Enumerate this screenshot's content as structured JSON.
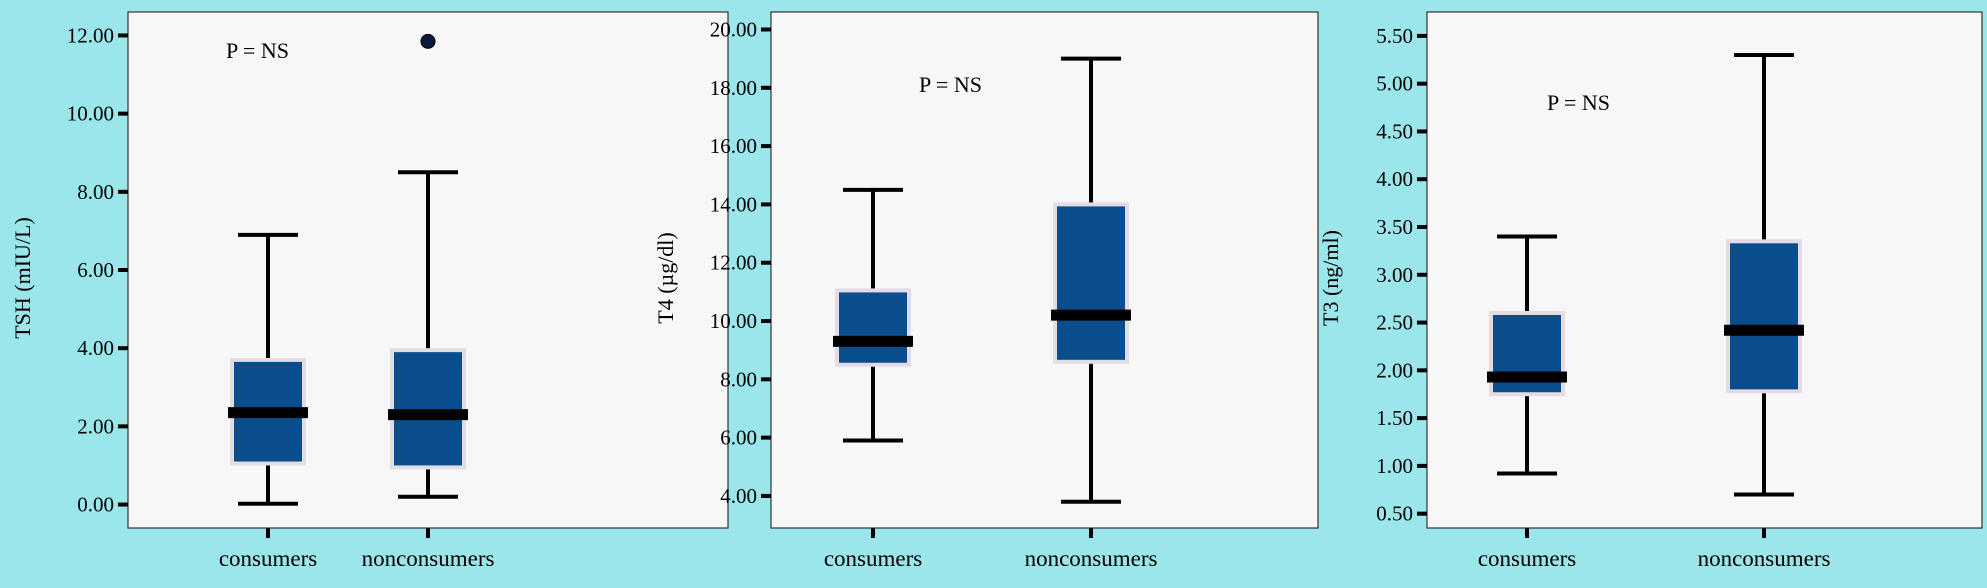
{
  "colors": {
    "background": "#9be6ea",
    "panel": "#f7f7f7",
    "box_fill": "#0a4d8c",
    "box_outline": "#e4dce4",
    "line": "#000000",
    "outlier": "#0b1a3a"
  },
  "chart_data": [
    {
      "type": "boxplot",
      "ylabel": "TSH (mIU/L)",
      "annotation": "P = NS",
      "ylim": [
        -0.6,
        12.6
      ],
      "yticks": [
        0.0,
        2.0,
        4.0,
        6.0,
        8.0,
        10.0,
        12.0
      ],
      "ytick_labels": [
        "0.00",
        "2.00",
        "4.00",
        "6.00",
        "8.00",
        "10.00",
        "12.00"
      ],
      "categories": [
        "consumers",
        "nonconsumers"
      ],
      "boxes": [
        {
          "min": 0.02,
          "q1": 1.05,
          "median": 2.35,
          "q3": 3.7,
          "max": 6.9,
          "outliers": []
        },
        {
          "min": 0.2,
          "q1": 0.95,
          "median": 2.3,
          "q3": 3.95,
          "max": 8.5,
          "outliers": [
            11.85
          ]
        }
      ]
    },
    {
      "type": "boxplot",
      "ylabel": "T4 (µg/dl)",
      "annotation": "P = NS",
      "ylim": [
        2.9,
        20.6
      ],
      "yticks": [
        4.0,
        6.0,
        8.0,
        10.0,
        12.0,
        14.0,
        16.0,
        18.0,
        20.0
      ],
      "ytick_labels": [
        "4.00",
        "6.00",
        "8.00",
        "10.00",
        "12.00",
        "14.00",
        "16.00",
        "18.00",
        "20.00"
      ],
      "categories": [
        "consumers",
        "nonconsumers"
      ],
      "boxes": [
        {
          "min": 5.9,
          "q1": 8.5,
          "median": 9.3,
          "q3": 11.05,
          "max": 14.5,
          "outliers": []
        },
        {
          "min": 3.8,
          "q1": 8.6,
          "median": 10.2,
          "q3": 14.0,
          "max": 19.0,
          "outliers": []
        }
      ]
    },
    {
      "type": "boxplot",
      "ylabel": "T3 (ng/ml)",
      "annotation": "P = NS",
      "ylim": [
        0.35,
        5.75
      ],
      "yticks": [
        0.5,
        1.0,
        1.5,
        2.0,
        2.5,
        3.0,
        3.5,
        4.0,
        4.5,
        5.0,
        5.5
      ],
      "ytick_labels": [
        "0.50",
        "1.00",
        "1.50",
        "2.00",
        "2.50",
        "3.00",
        "3.50",
        "4.00",
        "4.50",
        "5.00",
        "5.50"
      ],
      "categories": [
        "consumers",
        "nonconsumers"
      ],
      "boxes": [
        {
          "min": 0.92,
          "q1": 1.75,
          "median": 1.93,
          "q3": 2.6,
          "max": 3.4,
          "outliers": []
        },
        {
          "min": 0.7,
          "q1": 1.78,
          "median": 2.42,
          "q3": 3.35,
          "max": 5.3,
          "outliers": []
        }
      ]
    }
  ]
}
